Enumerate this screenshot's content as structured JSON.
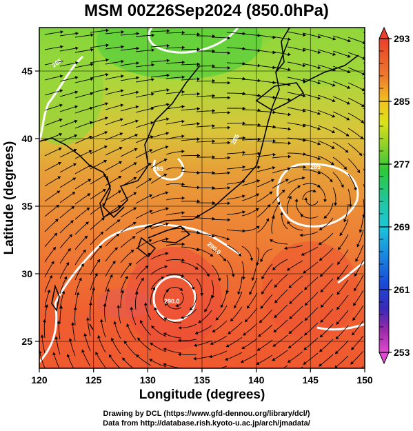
{
  "title": "MSM 00Z26Sep2024 (850.0hPa)",
  "map": {
    "xlabel": "Longitude (degrees)",
    "ylabel": "Latitude  (degrees)",
    "lon_range": [
      120,
      150
    ],
    "lat_range": [
      22.4,
      47.6
    ],
    "lon_ticks": [
      "120",
      "125",
      "130",
      "135",
      "140",
      "145",
      "150"
    ],
    "lat_ticks": [
      "25",
      "30",
      "35",
      "40",
      "45"
    ],
    "contour_labels": [
      "285",
      "285",
      "285",
      "290.0",
      "285",
      "290.0"
    ]
  },
  "colorbar": {
    "labels": [
      "293",
      "285",
      "277",
      "269",
      "261",
      "253"
    ],
    "min": 253,
    "max": 293
  },
  "credits": {
    "line1": "Drawing by DCL (https://www.gfd-dennou.org/library/dcl/)",
    "line2": "Data from http://database.rish.kyoto-u.ac.jp/arch/jmadata/"
  }
}
